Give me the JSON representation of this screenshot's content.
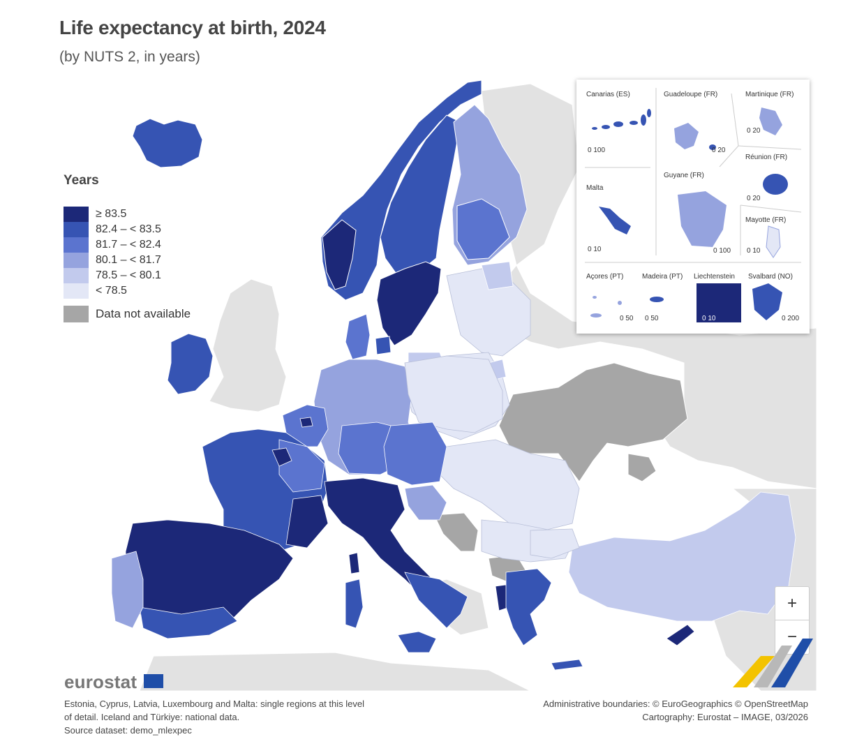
{
  "title": "Life expectancy at birth, 2024",
  "subtitle": "(by NUTS 2, in years)",
  "legend": {
    "title": "Years",
    "classes": [
      {
        "label": "≥ 83.5",
        "color": "#1c2878"
      },
      {
        "label": "82.4 – < 83.5",
        "color": "#3654b3"
      },
      {
        "label": "81.7 – < 82.4",
        "color": "#5b74cf"
      },
      {
        "label": "80.1 – < 81.7",
        "color": "#95a3de"
      },
      {
        "label": "78.5 – < 80.1",
        "color": "#c2caed"
      },
      {
        "label": "< 78.5",
        "color": "#e3e7f6"
      }
    ],
    "na_label": "Data not available",
    "na_color": "#a6a6a6"
  },
  "insets": {
    "canarias": {
      "label": "Canarias (ES)",
      "scale": "0  100"
    },
    "guadeloupe": {
      "label": "Guadeloupe (FR)",
      "scale": "0  20"
    },
    "martinique": {
      "label": "Martinique (FR)",
      "scale": "0  20"
    },
    "reunion": {
      "label": "Réunion (FR)",
      "scale": "0  20"
    },
    "malta": {
      "label": "Malta",
      "scale": "0  10"
    },
    "guyane": {
      "label": "Guyane (FR)",
      "scale": "0  100"
    },
    "mayotte": {
      "label": "Mayotte (FR)",
      "scale": "0 10"
    },
    "acores": {
      "label": "Açores (PT)",
      "scale": "0  50"
    },
    "madeira": {
      "label": "Madeira (PT)",
      "scale": "0  50"
    },
    "liechtenstein": {
      "label": "Liechtenstein",
      "scale": "0  10"
    },
    "svalbard": {
      "label": "Svalbard (NO)",
      "scale": "0  200"
    }
  },
  "zoom": {
    "in": "+",
    "out": "−"
  },
  "logo": "eurostat",
  "footnote": [
    "Estonia, Cyprus, Latvia, Luxembourg and Malta: single regions at this level",
    "of detail. Iceland and Türkiye: national data.",
    "Source dataset: demo_mlexpec"
  ],
  "credits": [
    "Administrative boundaries: © EuroGeographics © OpenStreetMap",
    "Cartography: Eurostat – IMAGE, 03/2026"
  ]
}
